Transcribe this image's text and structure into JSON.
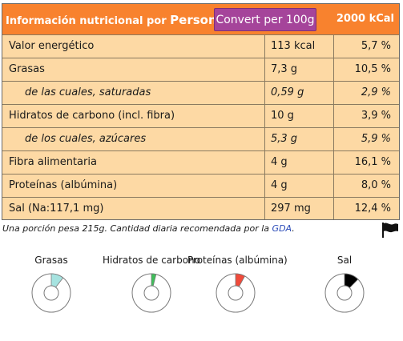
{
  "header": {
    "title": "Información nutricional por",
    "title_suffix": "Person",
    "convert_button": "Convert per 100g",
    "reference": "2000 kCal"
  },
  "rows": [
    {
      "name": "Valor energético",
      "amount": "113 kcal",
      "percent": "5,7 %",
      "sub": false
    },
    {
      "name": "Grasas",
      "amount": "7,3 g",
      "percent": "10,5 %",
      "sub": false
    },
    {
      "name": "de las cuales, saturadas",
      "amount": "0,59 g",
      "percent": "2,9 %",
      "sub": true
    },
    {
      "name": "Hidratos de carbono (incl. fibra)",
      "amount": "10 g",
      "percent": "3,9 %",
      "sub": false
    },
    {
      "name": "de los cuales, azúcares",
      "amount": "5,3 g",
      "percent": "5,9 %",
      "sub": true
    },
    {
      "name": "Fibra alimentaria",
      "amount": "4 g",
      "percent": "16,1 %",
      "sub": false
    },
    {
      "name": "Proteínas (albúmina)",
      "amount": "4 g",
      "percent": "8,0 %",
      "sub": false
    },
    {
      "name": "Sal (Na:117,1 mg)",
      "amount": "297 mg",
      "percent": "12,4 %",
      "sub": false
    }
  ],
  "footnote": {
    "text": "Una porción pesa 215g.   Cantidad diaria recomendada por la",
    "link": "GDA",
    "end": "."
  },
  "flag_icon": "flag-icon",
  "gauges": [
    {
      "label": "Grasas",
      "fraction": 0.105,
      "color": "#a6e3e0"
    },
    {
      "label": "Hidratos de carbono",
      "fraction": 0.039,
      "color": "#3fbf5a"
    },
    {
      "label": "Proteínas (albúmina)",
      "fraction": 0.08,
      "color": "#f04a3a"
    },
    {
      "label": "Sal",
      "fraction": 0.124,
      "color": "#000000"
    }
  ]
}
